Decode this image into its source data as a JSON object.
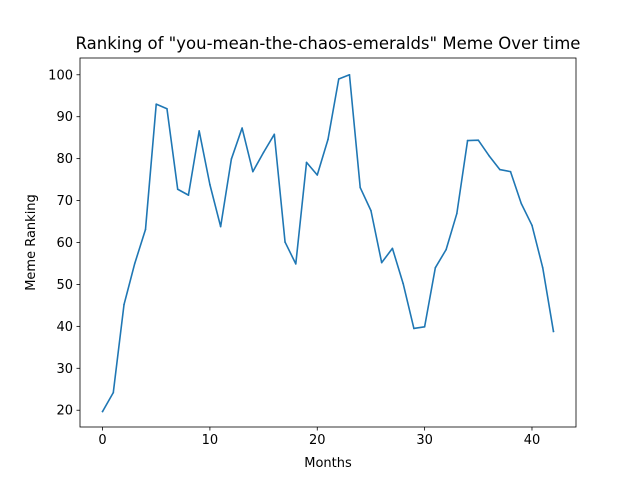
{
  "chart_data": {
    "type": "line",
    "title": "Ranking of \"you-mean-the-chaos-emeralds\" Meme Over time",
    "xlabel": "Months",
    "ylabel": "Meme Ranking",
    "xlim": [
      -2.1,
      44.1
    ],
    "ylim": [
      16,
      104
    ],
    "xticks": [
      0,
      10,
      20,
      30,
      40
    ],
    "yticks": [
      20,
      30,
      40,
      50,
      60,
      70,
      80,
      90,
      100
    ],
    "grid": false,
    "series": [
      {
        "name": "you-mean-the-chaos-emeralds",
        "color": "#1f77b4",
        "x": [
          0,
          1,
          2,
          3,
          4,
          5,
          6,
          7,
          8,
          9,
          10,
          11,
          12,
          13,
          14,
          15,
          16,
          17,
          18,
          19,
          20,
          21,
          22,
          23,
          24,
          25,
          26,
          27,
          28,
          29,
          30,
          31,
          32,
          33,
          34,
          35,
          36,
          37,
          38,
          39,
          40,
          41,
          42
        ],
        "y": [
          19.7,
          24.2,
          45.2,
          55.0,
          63.1,
          93.0,
          91.9,
          72.7,
          71.3,
          86.6,
          73.8,
          63.8,
          79.9,
          87.3,
          76.9,
          81.5,
          85.8,
          60.1,
          54.9,
          79.1,
          76.1,
          84.6,
          99.0,
          100.0,
          73.1,
          67.6,
          55.2,
          58.6,
          50.2,
          39.5,
          39.9,
          54.0,
          58.3,
          66.9,
          84.3,
          84.4,
          80.7,
          77.4,
          76.9,
          69.3,
          64.1,
          54.0,
          38.8
        ]
      }
    ]
  }
}
